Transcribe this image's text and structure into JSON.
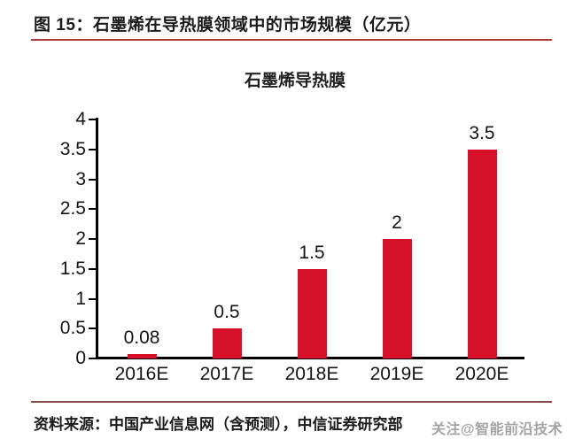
{
  "header": {
    "title": "图 15：石墨烯在导热膜领域中的市场规模（亿元）"
  },
  "chart_data": {
    "type": "bar",
    "title": "石墨烯导热膜",
    "categories": [
      "2016E",
      "2017E",
      "2018E",
      "2019E",
      "2020E"
    ],
    "values": [
      0.08,
      0.5,
      1.5,
      2,
      3.5
    ],
    "value_labels": [
      "0.08",
      "0.5",
      "1.5",
      "2",
      "3.5"
    ],
    "ytick_values": [
      0,
      0.5,
      1,
      1.5,
      2,
      2.5,
      3,
      3.5,
      4
    ],
    "ylim": [
      0,
      4
    ],
    "xlabel": "",
    "ylabel": "",
    "grid": false,
    "legend": "none",
    "bar_color": "#d8112b",
    "axis_color": "#000000"
  },
  "footer": {
    "source": "资料来源：中国产业信息网（含预测），中信证券研究部"
  },
  "watermark": {
    "text": "关注@智能前沿技术"
  },
  "colors": {
    "header_rule": "#ae3b33",
    "footer_rule": "#8a4a45",
    "watermark_gray": "#9a9a9a"
  }
}
